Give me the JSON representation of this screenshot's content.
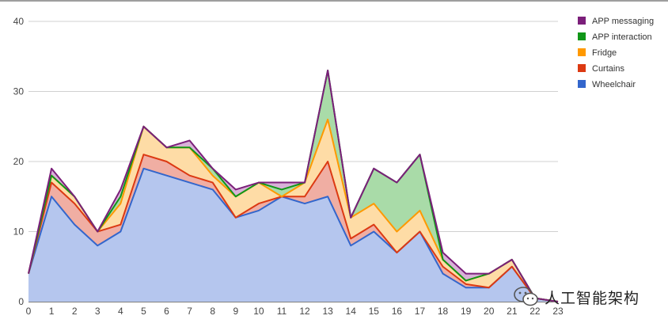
{
  "chart_data": {
    "type": "area",
    "stacked": true,
    "x": [
      0,
      1,
      2,
      3,
      4,
      5,
      6,
      7,
      8,
      9,
      10,
      11,
      12,
      13,
      14,
      15,
      16,
      17,
      18,
      19,
      20,
      21,
      22,
      23
    ],
    "ylim": [
      0,
      40
    ],
    "yticks": [
      0,
      10,
      20,
      30,
      40
    ],
    "grid": true,
    "legend_position": "right",
    "series": [
      {
        "name": "Wheelchair",
        "color": "#3366cc",
        "fill": "#b5c6ee",
        "values": [
          4,
          15,
          11,
          8,
          10,
          19,
          18,
          17,
          16,
          12,
          13,
          15,
          14,
          15,
          8,
          10,
          7,
          10,
          4,
          2,
          2,
          5,
          0.5,
          0
        ]
      },
      {
        "name": "Curtains",
        "color": "#dc3912",
        "fill": "#f0aea3",
        "values": [
          0,
          2,
          3,
          2,
          1,
          2,
          2,
          1,
          1,
          0,
          1,
          0,
          1,
          5,
          1,
          1,
          0,
          0,
          1,
          0.5,
          0,
          0,
          0,
          0
        ]
      },
      {
        "name": "Fridge",
        "color": "#ff9900",
        "fill": "#fedca6",
        "values": [
          0,
          1,
          1,
          0,
          3,
          4,
          2,
          4,
          1,
          3,
          3,
          0,
          2,
          6,
          3,
          3,
          3,
          3,
          1,
          0.5,
          2,
          1,
          0,
          0
        ]
      },
      {
        "name": "APP interaction",
        "color": "#109618",
        "fill": "#a9dba8",
        "values": [
          0,
          0,
          0,
          0,
          1,
          0,
          0,
          0,
          1,
          0,
          0,
          1,
          0,
          7,
          0,
          5,
          7,
          8,
          0,
          0,
          0,
          0,
          0,
          0
        ]
      },
      {
        "name": "APP messaging",
        "color": "#7b1f7a",
        "fill": "#d8b2d8",
        "values": [
          0,
          1,
          0,
          0,
          1,
          0,
          0,
          1,
          0,
          1,
          0,
          1,
          0,
          0,
          0,
          0,
          0,
          0,
          1,
          1,
          0,
          0,
          0,
          0
        ]
      }
    ]
  },
  "watermark": {
    "text": "人工智能架构"
  }
}
